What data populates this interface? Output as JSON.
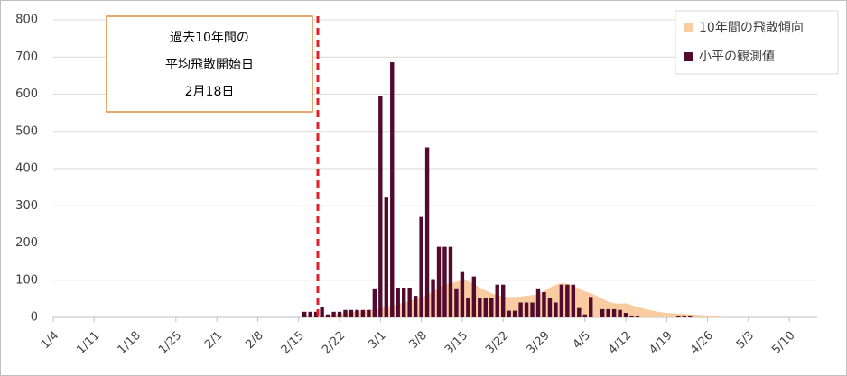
{
  "chart_data": {
    "type": "bar_area",
    "categories": [
      "1/4",
      null,
      null,
      null,
      null,
      null,
      null,
      "1/11",
      null,
      null,
      null,
      null,
      null,
      null,
      "1/18",
      null,
      null,
      null,
      null,
      null,
      null,
      "1/25",
      null,
      null,
      null,
      null,
      null,
      null,
      "2/1",
      null,
      null,
      null,
      null,
      null,
      null,
      "2/8",
      null,
      null,
      null,
      null,
      null,
      null,
      "2/15",
      null,
      null,
      null,
      null,
      null,
      null,
      "2/22",
      null,
      null,
      null,
      null,
      null,
      null,
      "3/1",
      null,
      null,
      null,
      null,
      null,
      null,
      "3/8",
      null,
      null,
      null,
      null,
      null,
      null,
      "3/15",
      null,
      null,
      null,
      null,
      null,
      null,
      "3/22",
      null,
      null,
      null,
      null,
      null,
      null,
      "3/29",
      null,
      null,
      null,
      null,
      null,
      null,
      "4/5",
      null,
      null,
      null,
      null,
      null,
      null,
      "4/12",
      null,
      null,
      null,
      null,
      null,
      null,
      "4/19",
      null,
      null,
      null,
      null,
      null,
      null,
      "4/26",
      null,
      null,
      null,
      null,
      null,
      null,
      "5/3",
      null,
      null,
      null,
      null,
      null,
      null,
      "5/10",
      null,
      null,
      null,
      null
    ],
    "series": [
      {
        "name": "10年間の飛散傾向",
        "kind": "area",
        "color": "#f8cba0",
        "values": [
          null,
          null,
          null,
          null,
          null,
          null,
          null,
          null,
          null,
          null,
          null,
          null,
          null,
          null,
          null,
          null,
          null,
          null,
          null,
          null,
          null,
          null,
          null,
          null,
          null,
          null,
          null,
          null,
          null,
          null,
          null,
          null,
          null,
          null,
          null,
          null,
          null,
          null,
          null,
          null,
          null,
          null,
          null,
          2,
          3,
          4,
          5,
          6,
          8,
          10,
          12,
          14,
          16,
          18,
          20,
          22,
          25,
          28,
          32,
          36,
          40,
          45,
          50,
          55,
          60,
          70,
          80,
          88,
          92,
          96,
          100,
          98,
          90,
          80,
          72,
          65,
          60,
          56,
          55,
          55,
          56,
          58,
          60,
          62,
          70,
          80,
          88,
          92,
          90,
          85,
          78,
          70,
          65,
          58,
          50,
          42,
          38,
          37,
          38,
          33,
          28,
          24,
          20,
          17,
          14,
          12,
          11,
          10,
          9,
          8,
          7,
          6,
          5,
          4,
          3,
          0,
          null,
          null,
          null,
          null,
          null,
          null,
          null,
          null,
          null,
          null,
          null,
          null,
          null,
          null,
          null
        ]
      },
      {
        "name": "小平の観測値",
        "kind": "bar",
        "color": "#520a2e",
        "values": [
          null,
          null,
          null,
          null,
          null,
          null,
          null,
          null,
          null,
          null,
          null,
          null,
          null,
          null,
          null,
          null,
          null,
          null,
          null,
          null,
          null,
          null,
          null,
          null,
          null,
          null,
          null,
          null,
          null,
          null,
          null,
          null,
          null,
          null,
          null,
          null,
          null,
          null,
          null,
          null,
          null,
          null,
          null,
          15,
          15,
          15,
          27,
          8,
          15,
          15,
          20,
          20,
          20,
          20,
          20,
          78,
          595,
          322,
          686,
          80,
          80,
          80,
          58,
          270,
          457,
          103,
          190,
          190,
          190,
          78,
          122,
          52,
          110,
          52,
          52,
          52,
          88,
          88,
          18,
          18,
          40,
          40,
          40,
          78,
          68,
          52,
          40,
          88,
          88,
          88,
          25,
          8,
          55,
          0,
          22,
          22,
          22,
          20,
          12,
          5,
          3,
          null,
          null,
          null,
          null,
          null,
          null,
          5,
          5,
          5,
          null,
          null,
          null,
          null,
          null,
          null,
          null,
          null,
          null,
          null,
          null,
          null,
          null,
          null,
          null,
          null,
          null,
          null,
          null,
          null,
          null
        ]
      }
    ],
    "ylim": [
      0,
      800
    ],
    "yticks": [
      0,
      100,
      200,
      300,
      400,
      500,
      600,
      700,
      800
    ],
    "grid": true,
    "legend": "top-right",
    "annotation": [
      "過去10年間の",
      "平均飛散開始日",
      "2月18日"
    ]
  }
}
